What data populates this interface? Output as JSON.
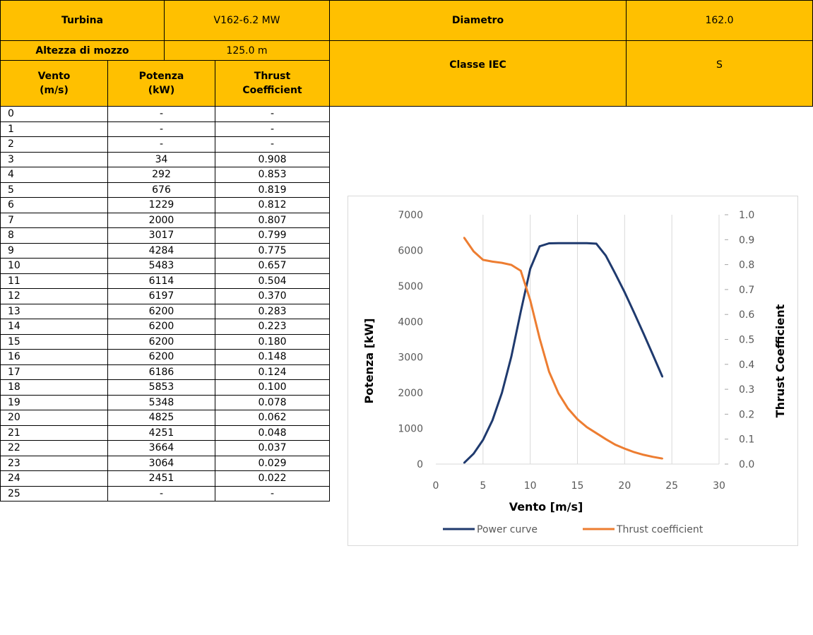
{
  "header": {
    "turbina_label": "Turbina",
    "turbina_value": "V162-6.2 MW",
    "diametro_label": "Diametro",
    "diametro_value": "162.0",
    "altezza_label": "Altezza di mozzo",
    "altezza_value": "125.0 m",
    "classe_label": "Classe IEC",
    "classe_value": "S"
  },
  "table": {
    "col_vento": [
      "Vento",
      "(m/s)"
    ],
    "col_potenza": [
      "Potenza",
      "(kW)"
    ],
    "col_thrust": [
      "Thrust",
      "Coefficient"
    ],
    "rows": [
      [
        "0",
        "-",
        "-"
      ],
      [
        "1",
        "-",
        "-"
      ],
      [
        "2",
        "-",
        "-"
      ],
      [
        "3",
        "34",
        "0.908"
      ],
      [
        "4",
        "292",
        "0.853"
      ],
      [
        "5",
        "676",
        "0.819"
      ],
      [
        "6",
        "1229",
        "0.812"
      ],
      [
        "7",
        "2000",
        "0.807"
      ],
      [
        "8",
        "3017",
        "0.799"
      ],
      [
        "9",
        "4284",
        "0.775"
      ],
      [
        "10",
        "5483",
        "0.657"
      ],
      [
        "11",
        "6114",
        "0.504"
      ],
      [
        "12",
        "6197",
        "0.370"
      ],
      [
        "13",
        "6200",
        "0.283"
      ],
      [
        "14",
        "6200",
        "0.223"
      ],
      [
        "15",
        "6200",
        "0.180"
      ],
      [
        "16",
        "6200",
        "0.148"
      ],
      [
        "17",
        "6186",
        "0.124"
      ],
      [
        "18",
        "5853",
        "0.100"
      ],
      [
        "19",
        "5348",
        "0.078"
      ],
      [
        "20",
        "4825",
        "0.062"
      ],
      [
        "21",
        "4251",
        "0.048"
      ],
      [
        "22",
        "3664",
        "0.037"
      ],
      [
        "23",
        "3064",
        "0.029"
      ],
      [
        "24",
        "2451",
        "0.022"
      ],
      [
        "25",
        "-",
        "-"
      ]
    ]
  },
  "chart_data": {
    "type": "line",
    "xlabel": "Vento [m/s]",
    "ylabel": "Potenza [kW]",
    "y2label": "Thrust Coefficient",
    "xlim": [
      0,
      30
    ],
    "ylim": [
      0,
      7000
    ],
    "y2lim": [
      0,
      1.0
    ],
    "xticks": [
      0,
      5,
      10,
      15,
      20,
      25,
      30
    ],
    "yticks": [
      0,
      1000,
      2000,
      3000,
      4000,
      5000,
      6000,
      7000
    ],
    "y2ticks": [
      "0.0",
      "0.1",
      "0.2",
      "0.3",
      "0.4",
      "0.5",
      "0.6",
      "0.7",
      "0.8",
      "0.9",
      "1.0"
    ],
    "grid": "vertical",
    "legend": "bottom",
    "series": [
      {
        "name": "Power curve",
        "axis": "left",
        "color": "#1F3A6E",
        "x": [
          3,
          4,
          5,
          6,
          7,
          8,
          9,
          10,
          11,
          12,
          13,
          14,
          15,
          16,
          17,
          18,
          19,
          20,
          21,
          22,
          23,
          24
        ],
        "values": [
          34,
          292,
          676,
          1229,
          2000,
          3017,
          4284,
          5483,
          6114,
          6197,
          6200,
          6200,
          6200,
          6200,
          6186,
          5853,
          5348,
          4825,
          4251,
          3664,
          3064,
          2451
        ]
      },
      {
        "name": "Thrust coefficient",
        "axis": "right",
        "color": "#ED7D31",
        "x": [
          3,
          4,
          5,
          6,
          7,
          8,
          9,
          10,
          11,
          12,
          13,
          14,
          15,
          16,
          17,
          18,
          19,
          20,
          21,
          22,
          23,
          24
        ],
        "values": [
          0.908,
          0.853,
          0.819,
          0.812,
          0.807,
          0.799,
          0.775,
          0.657,
          0.504,
          0.37,
          0.283,
          0.223,
          0.18,
          0.148,
          0.124,
          0.1,
          0.078,
          0.062,
          0.048,
          0.037,
          0.029,
          0.022
        ]
      }
    ]
  }
}
